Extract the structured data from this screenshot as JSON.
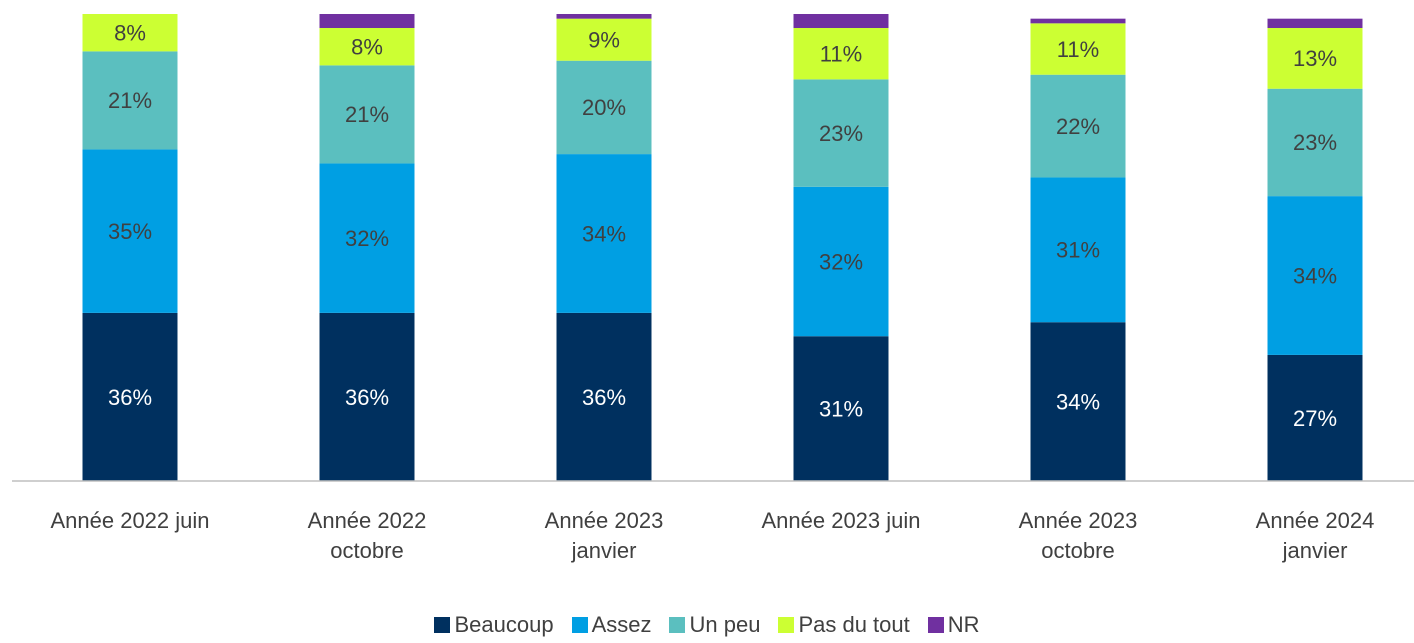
{
  "chart_data": {
    "type": "stacked_bar",
    "categories": [
      "Année 2022 juin",
      "Année 2022 octobre",
      "Année 2023 janvier",
      "Année 2023 juin",
      "Année 2023 octobre",
      "Année 2024 janvier"
    ],
    "ylim": [
      0,
      100
    ],
    "legend": "bottom",
    "series": [
      {
        "name": "Beaucoup",
        "color": "#00305f",
        "values": [
          36,
          36,
          36,
          31,
          34,
          27
        ],
        "value_labels": [
          "36%",
          "36%",
          "36%",
          "31%",
          "34%",
          "27%"
        ]
      },
      {
        "name": "Assez",
        "color": "#009fe3",
        "values": [
          35,
          32,
          34,
          32,
          31,
          34
        ],
        "value_labels": [
          "35%",
          "32%",
          "34%",
          "32%",
          "31%",
          "34%"
        ]
      },
      {
        "name": "Un peu",
        "color": "#5bbfbf",
        "values": [
          21,
          21,
          20,
          23,
          22,
          23
        ],
        "value_labels": [
          "21%",
          "21%",
          "20%",
          "23%",
          "22%",
          "23%"
        ]
      },
      {
        "name": "Pas du tout",
        "color": "#ccff33",
        "values": [
          8,
          8,
          9,
          11,
          11,
          13
        ],
        "value_labels": [
          "8%",
          "8%",
          "9%",
          "11%",
          "11%",
          "13%"
        ]
      },
      {
        "name": "NR",
        "color": "#7030a0",
        "values": [
          0,
          3,
          1,
          3,
          1,
          2
        ]
      }
    ]
  }
}
